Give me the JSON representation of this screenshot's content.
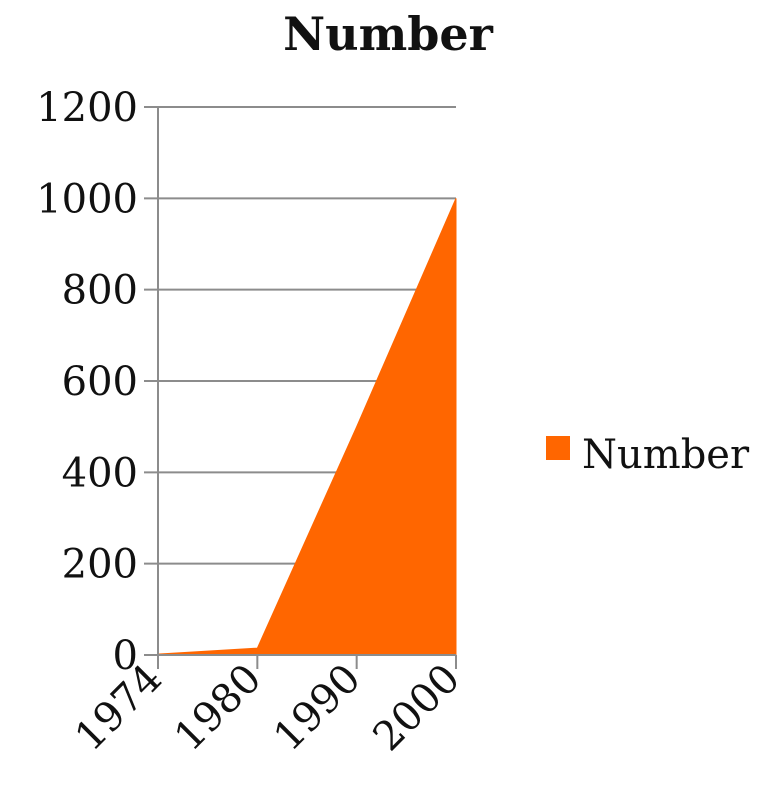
{
  "chart_data": {
    "type": "area",
    "title": "Number",
    "categories": [
      "1974",
      "1980",
      "1990",
      "2000"
    ],
    "series": [
      {
        "name": "Number",
        "values": [
          2,
          15,
          500,
          1000
        ],
        "color": "#FF6600"
      }
    ],
    "ylim": [
      0,
      1200
    ],
    "yticks": [
      "0",
      "200",
      "400",
      "600",
      "800",
      "1000",
      "1200"
    ],
    "grid": true,
    "legend_position": "right",
    "xlabel": "",
    "ylabel": ""
  }
}
